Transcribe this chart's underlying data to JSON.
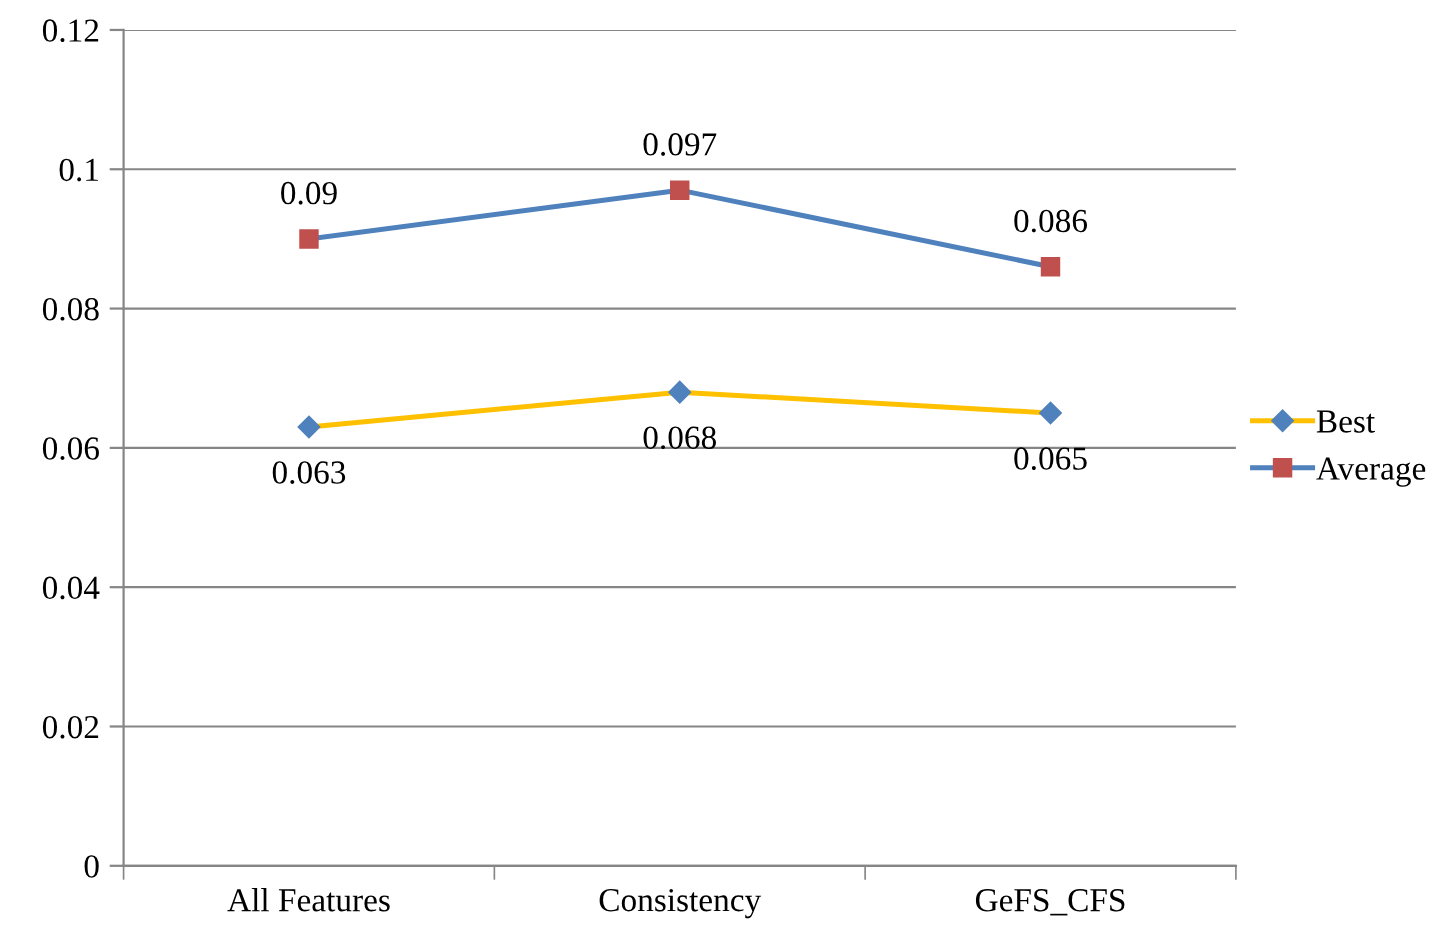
{
  "chart_data": {
    "type": "line",
    "categories": [
      "All Features",
      "Consistency",
      "GeFS_CFS"
    ],
    "series": [
      {
        "name": "Best",
        "color": "#ffc000",
        "colors": [
          "#4f81bd",
          "#4f81bd",
          "#4f81bd"
        ],
        "marker": "diamond",
        "values": [
          0.063,
          0.068,
          0.065
        ]
      },
      {
        "name": "Average",
        "color": "#4f81bd",
        "colors": [
          "#c0504d",
          "#c0504d",
          "#c0504d"
        ],
        "marker": "square",
        "values": [
          0.09,
          0.097,
          0.086
        ]
      }
    ],
    "ylim": [
      0,
      0.12
    ],
    "yticks": [
      0,
      0.02,
      0.04,
      0.06,
      0.08,
      0.1,
      0.12
    ],
    "grid": "y",
    "legend": "right",
    "data_labels": true,
    "line_style": "solid"
  }
}
